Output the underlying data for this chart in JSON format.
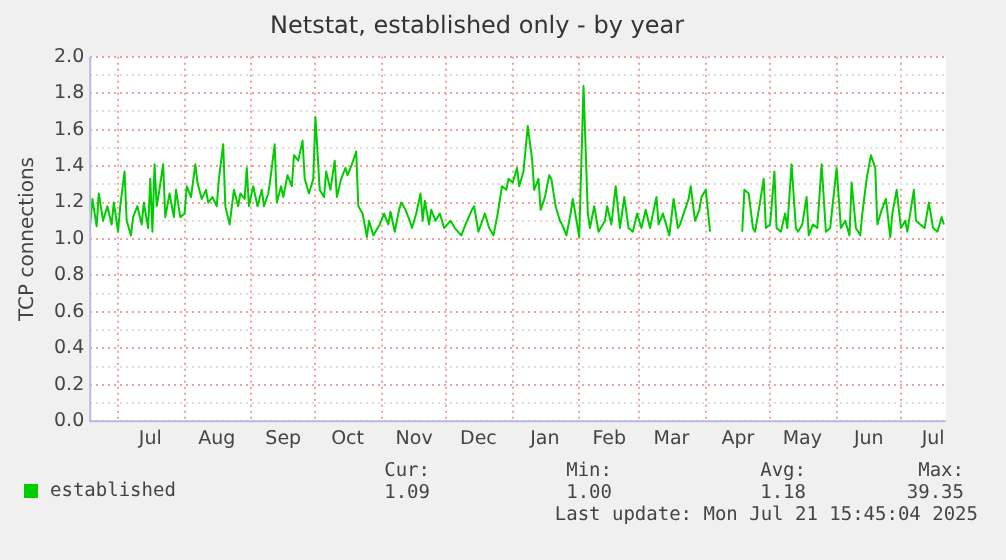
{
  "chart_data": {
    "type": "line",
    "title": "Netstat, established only - by year",
    "ylabel": "TCP connections",
    "x": [
      "2024-06-18",
      "2024-06-19",
      "2024-06-21",
      "2024-06-22",
      "2024-06-24",
      "2024-06-26",
      "2024-06-28",
      "2024-06-29",
      "2024-07-01",
      "2024-07-02",
      "2024-07-04",
      "2024-07-05",
      "2024-07-07",
      "2024-07-08",
      "2024-07-10",
      "2024-07-12",
      "2024-07-13",
      "2024-07-15",
      "2024-07-16",
      "2024-07-17",
      "2024-07-18",
      "2024-07-19",
      "2024-07-20",
      "2024-07-22",
      "2024-07-23",
      "2024-07-25",
      "2024-07-27",
      "2024-07-28",
      "2024-07-30",
      "2024-08-01",
      "2024-08-02",
      "2024-08-04",
      "2024-08-06",
      "2024-08-07",
      "2024-08-09",
      "2024-08-11",
      "2024-08-12",
      "2024-08-14",
      "2024-08-16",
      "2024-08-17",
      "2024-08-19",
      "2024-08-20",
      "2024-08-22",
      "2024-08-24",
      "2024-08-26",
      "2024-08-27",
      "2024-08-29",
      "2024-08-30",
      "2024-08-31",
      "2024-09-02",
      "2024-09-04",
      "2024-09-06",
      "2024-09-07",
      "2024-09-09",
      "2024-09-10",
      "2024-09-12",
      "2024-09-13",
      "2024-09-15",
      "2024-09-16",
      "2024-09-18",
      "2024-09-20",
      "2024-09-21",
      "2024-09-23",
      "2024-09-25",
      "2024-09-26",
      "2024-09-28",
      "2024-09-30",
      "2024-10-01",
      "2024-10-03",
      "2024-10-05",
      "2024-10-06",
      "2024-10-08",
      "2024-10-10",
      "2024-10-11",
      "2024-10-13",
      "2024-10-15",
      "2024-10-16",
      "2024-10-18",
      "2024-10-20",
      "2024-10-21",
      "2024-10-23",
      "2024-10-25",
      "2024-10-26",
      "2024-10-28",
      "2024-10-30",
      "2024-10-31",
      "2024-11-02",
      "2024-11-04",
      "2024-11-05",
      "2024-11-07",
      "2024-11-09",
      "2024-11-10",
      "2024-11-12",
      "2024-11-14",
      "2024-11-15",
      "2024-11-17",
      "2024-11-19",
      "2024-11-20",
      "2024-11-21",
      "2024-11-23",
      "2024-11-24",
      "2024-11-26",
      "2024-11-28",
      "2024-11-30",
      "2024-12-03",
      "2024-12-05",
      "2024-12-08",
      "2024-12-10",
      "2024-12-13",
      "2024-12-14",
      "2024-12-16",
      "2024-12-19",
      "2024-12-21",
      "2024-12-23",
      "2024-12-25",
      "2024-12-27",
      "2024-12-29",
      "2024-12-30",
      "2025-01-01",
      "2025-01-03",
      "2025-01-04",
      "2025-01-06",
      "2025-01-08",
      "2025-01-10",
      "2025-01-11",
      "2025-01-13",
      "2025-01-14",
      "2025-01-16",
      "2025-01-18",
      "2025-01-19",
      "2025-01-21",
      "2025-01-23",
      "2025-01-24",
      "2025-01-26",
      "2025-01-28",
      "2025-01-29",
      "2025-02-01",
      "2025-02-03",
      "2025-02-05",
      "2025-02-06",
      "2025-02-08",
      "2025-02-10",
      "2025-02-13",
      "2025-02-14",
      "2025-02-16",
      "2025-02-18",
      "2025-02-20",
      "2025-02-22",
      "2025-02-24",
      "2025-02-26",
      "2025-02-28",
      "2025-03-02",
      "2025-03-04",
      "2025-03-06",
      "2025-03-09",
      "2025-03-10",
      "2025-03-12",
      "2025-03-15",
      "2025-03-17",
      "2025-03-19",
      "2025-03-20",
      "2025-03-24",
      "2025-03-25",
      "2025-03-27",
      "2025-03-29",
      "2025-03-30",
      "2025-04-01",
      "2025-04-03",
      "2025-04-10",
      "2025-04-18",
      "2025-04-19",
      "2025-04-21",
      "2025-04-23",
      "2025-04-24",
      "2025-04-26",
      "2025-04-28",
      "2025-04-29",
      "2025-05-01",
      "2025-05-03",
      "2025-05-04",
      "2025-05-06",
      "2025-05-08",
      "2025-05-09",
      "2025-05-11",
      "2025-05-13",
      "2025-05-14",
      "2025-05-16",
      "2025-05-18",
      "2025-05-19",
      "2025-05-21",
      "2025-05-23",
      "2025-05-25",
      "2025-05-27",
      "2025-05-29",
      "2025-06-01",
      "2025-06-03",
      "2025-06-05",
      "2025-06-07",
      "2025-06-08",
      "2025-06-10",
      "2025-06-12",
      "2025-06-13",
      "2025-06-15",
      "2025-06-17",
      "2025-06-19",
      "2025-06-20",
      "2025-06-22",
      "2025-06-24",
      "2025-06-26",
      "2025-06-27",
      "2025-06-29",
      "2025-07-01",
      "2025-07-03",
      "2025-07-04",
      "2025-07-07",
      "2025-07-08",
      "2025-07-10",
      "2025-07-12",
      "2025-07-14",
      "2025-07-16",
      "2025-07-18",
      "2025-07-20",
      "2025-07-21"
    ],
    "series": [
      {
        "name": "established",
        "color": "#00cc00",
        "values": [
          1.08,
          1.22,
          1.07,
          1.25,
          1.1,
          1.18,
          1.08,
          1.2,
          1.04,
          1.18,
          1.37,
          1.1,
          1.02,
          1.12,
          1.18,
          1.08,
          1.2,
          1.06,
          1.33,
          1.04,
          1.41,
          1.18,
          1.25,
          1.41,
          1.12,
          1.25,
          1.12,
          1.27,
          1.12,
          1.14,
          1.29,
          1.23,
          1.41,
          1.31,
          1.22,
          1.27,
          1.2,
          1.23,
          1.18,
          1.33,
          1.52,
          1.18,
          1.08,
          1.27,
          1.18,
          1.25,
          1.22,
          1.39,
          1.18,
          1.29,
          1.18,
          1.27,
          1.18,
          1.25,
          1.33,
          1.52,
          1.2,
          1.29,
          1.23,
          1.35,
          1.29,
          1.46,
          1.43,
          1.54,
          1.33,
          1.25,
          1.33,
          1.67,
          1.27,
          1.23,
          1.37,
          1.27,
          1.43,
          1.23,
          1.33,
          1.39,
          1.35,
          1.41,
          1.48,
          1.18,
          1.14,
          1.01,
          1.1,
          1.02,
          1.06,
          1.08,
          1.14,
          1.08,
          1.15,
          1.04,
          1.16,
          1.2,
          1.16,
          1.1,
          1.06,
          1.14,
          1.25,
          1.1,
          1.21,
          1.08,
          1.16,
          1.1,
          1.14,
          1.06,
          1.1,
          1.06,
          1.02,
          1.08,
          1.16,
          1.18,
          1.04,
          1.14,
          1.06,
          1.02,
          1.14,
          1.29,
          1.27,
          1.33,
          1.31,
          1.39,
          1.29,
          1.37,
          1.62,
          1.44,
          1.27,
          1.33,
          1.16,
          1.23,
          1.35,
          1.33,
          1.18,
          1.1,
          1.08,
          1.02,
          1.14,
          1.22,
          1.01,
          1.84,
          1.14,
          1.06,
          1.18,
          1.04,
          1.1,
          1.18,
          1.08,
          1.29,
          1.06,
          1.23,
          1.06,
          1.04,
          1.14,
          1.06,
          1.16,
          1.06,
          1.23,
          1.08,
          1.14,
          1.02,
          1.22,
          1.06,
          1.08,
          1.22,
          1.29,
          1.1,
          1.16,
          1.23,
          1.27,
          1.04,
          null,
          1.04,
          1.27,
          1.25,
          1.06,
          1.04,
          1.18,
          1.33,
          1.06,
          1.08,
          1.37,
          1.06,
          1.04,
          1.14,
          1.06,
          1.41,
          1.06,
          1.04,
          1.08,
          1.23,
          1.02,
          1.08,
          1.06,
          1.41,
          1.04,
          1.06,
          1.39,
          1.06,
          1.1,
          1.02,
          1.31,
          1.06,
          1.02,
          1.14,
          1.33,
          1.46,
          1.39,
          1.08,
          1.16,
          1.22,
          1.01,
          1.14,
          1.27,
          1.06,
          1.1,
          1.04,
          1.27,
          1.1,
          1.08,
          1.06,
          1.2,
          1.06,
          1.04,
          1.12,
          1.08
        ]
      }
    ],
    "xlim": [
      "2024-06-18",
      "2025-07-22"
    ],
    "xticks": [
      {
        "value": "2024-07-01",
        "label": null
      },
      {
        "value": "2024-07-16",
        "label": "Jul"
      },
      {
        "value": "2024-08-01",
        "label": null
      },
      {
        "value": "2024-08-16",
        "label": "Aug"
      },
      {
        "value": "2024-09-01",
        "label": null
      },
      {
        "value": "2024-09-16",
        "label": "Sep"
      },
      {
        "value": "2024-10-01",
        "label": null
      },
      {
        "value": "2024-10-16",
        "label": "Oct"
      },
      {
        "value": "2024-11-01",
        "label": null
      },
      {
        "value": "2024-11-16",
        "label": "Nov"
      },
      {
        "value": "2024-12-01",
        "label": null
      },
      {
        "value": "2024-12-16",
        "label": "Dec"
      },
      {
        "value": "2025-01-01",
        "label": null
      },
      {
        "value": "2025-01-16",
        "label": "Jan"
      },
      {
        "value": "2025-02-01",
        "label": null
      },
      {
        "value": "2025-02-15",
        "label": "Feb"
      },
      {
        "value": "2025-03-01",
        "label": null
      },
      {
        "value": "2025-03-16",
        "label": "Mar"
      },
      {
        "value": "2025-04-01",
        "label": null
      },
      {
        "value": "2025-04-16",
        "label": "Apr"
      },
      {
        "value": "2025-05-01",
        "label": null
      },
      {
        "value": "2025-05-16",
        "label": "May"
      },
      {
        "value": "2025-06-01",
        "label": null
      },
      {
        "value": "2025-06-16",
        "label": "Jun"
      },
      {
        "value": "2025-07-01",
        "label": null
      },
      {
        "value": "2025-07-16",
        "label": "Jul"
      }
    ],
    "ylim": [
      0,
      2
    ],
    "yticks": [
      {
        "value": 0,
        "label": "0.0"
      },
      {
        "value": 0.1,
        "label": null
      },
      {
        "value": 0.2,
        "label": "0.2"
      },
      {
        "value": 0.3,
        "label": null
      },
      {
        "value": 0.4,
        "label": "0.4"
      },
      {
        "value": 0.5,
        "label": null
      },
      {
        "value": 0.6,
        "label": "0.6"
      },
      {
        "value": 0.7,
        "label": null
      },
      {
        "value": 0.8,
        "label": "0.8"
      },
      {
        "value": 0.9,
        "label": null
      },
      {
        "value": 1,
        "label": "1.0"
      },
      {
        "value": 1.1,
        "label": null
      },
      {
        "value": 1.2,
        "label": "1.2"
      },
      {
        "value": 1.3,
        "label": null
      },
      {
        "value": 1.4,
        "label": "1.4"
      },
      {
        "value": 1.5,
        "label": null
      },
      {
        "value": 1.6,
        "label": "1.6"
      },
      {
        "value": 1.7,
        "label": null
      },
      {
        "value": 1.8,
        "label": "1.8"
      },
      {
        "value": 1.9,
        "label": null
      },
      {
        "value": 2,
        "label": "2.0"
      }
    ],
    "grid": true,
    "legend": "bottom left",
    "marker": "none",
    "line_style": "solid",
    "annotations": [
      "Cur:",
      "1.09",
      "Min:",
      "1.00",
      "Avg:",
      "1.18",
      "Max:",
      "39.35",
      "Last update: Mon Jul 21 15:45:04 2025"
    ]
  }
}
